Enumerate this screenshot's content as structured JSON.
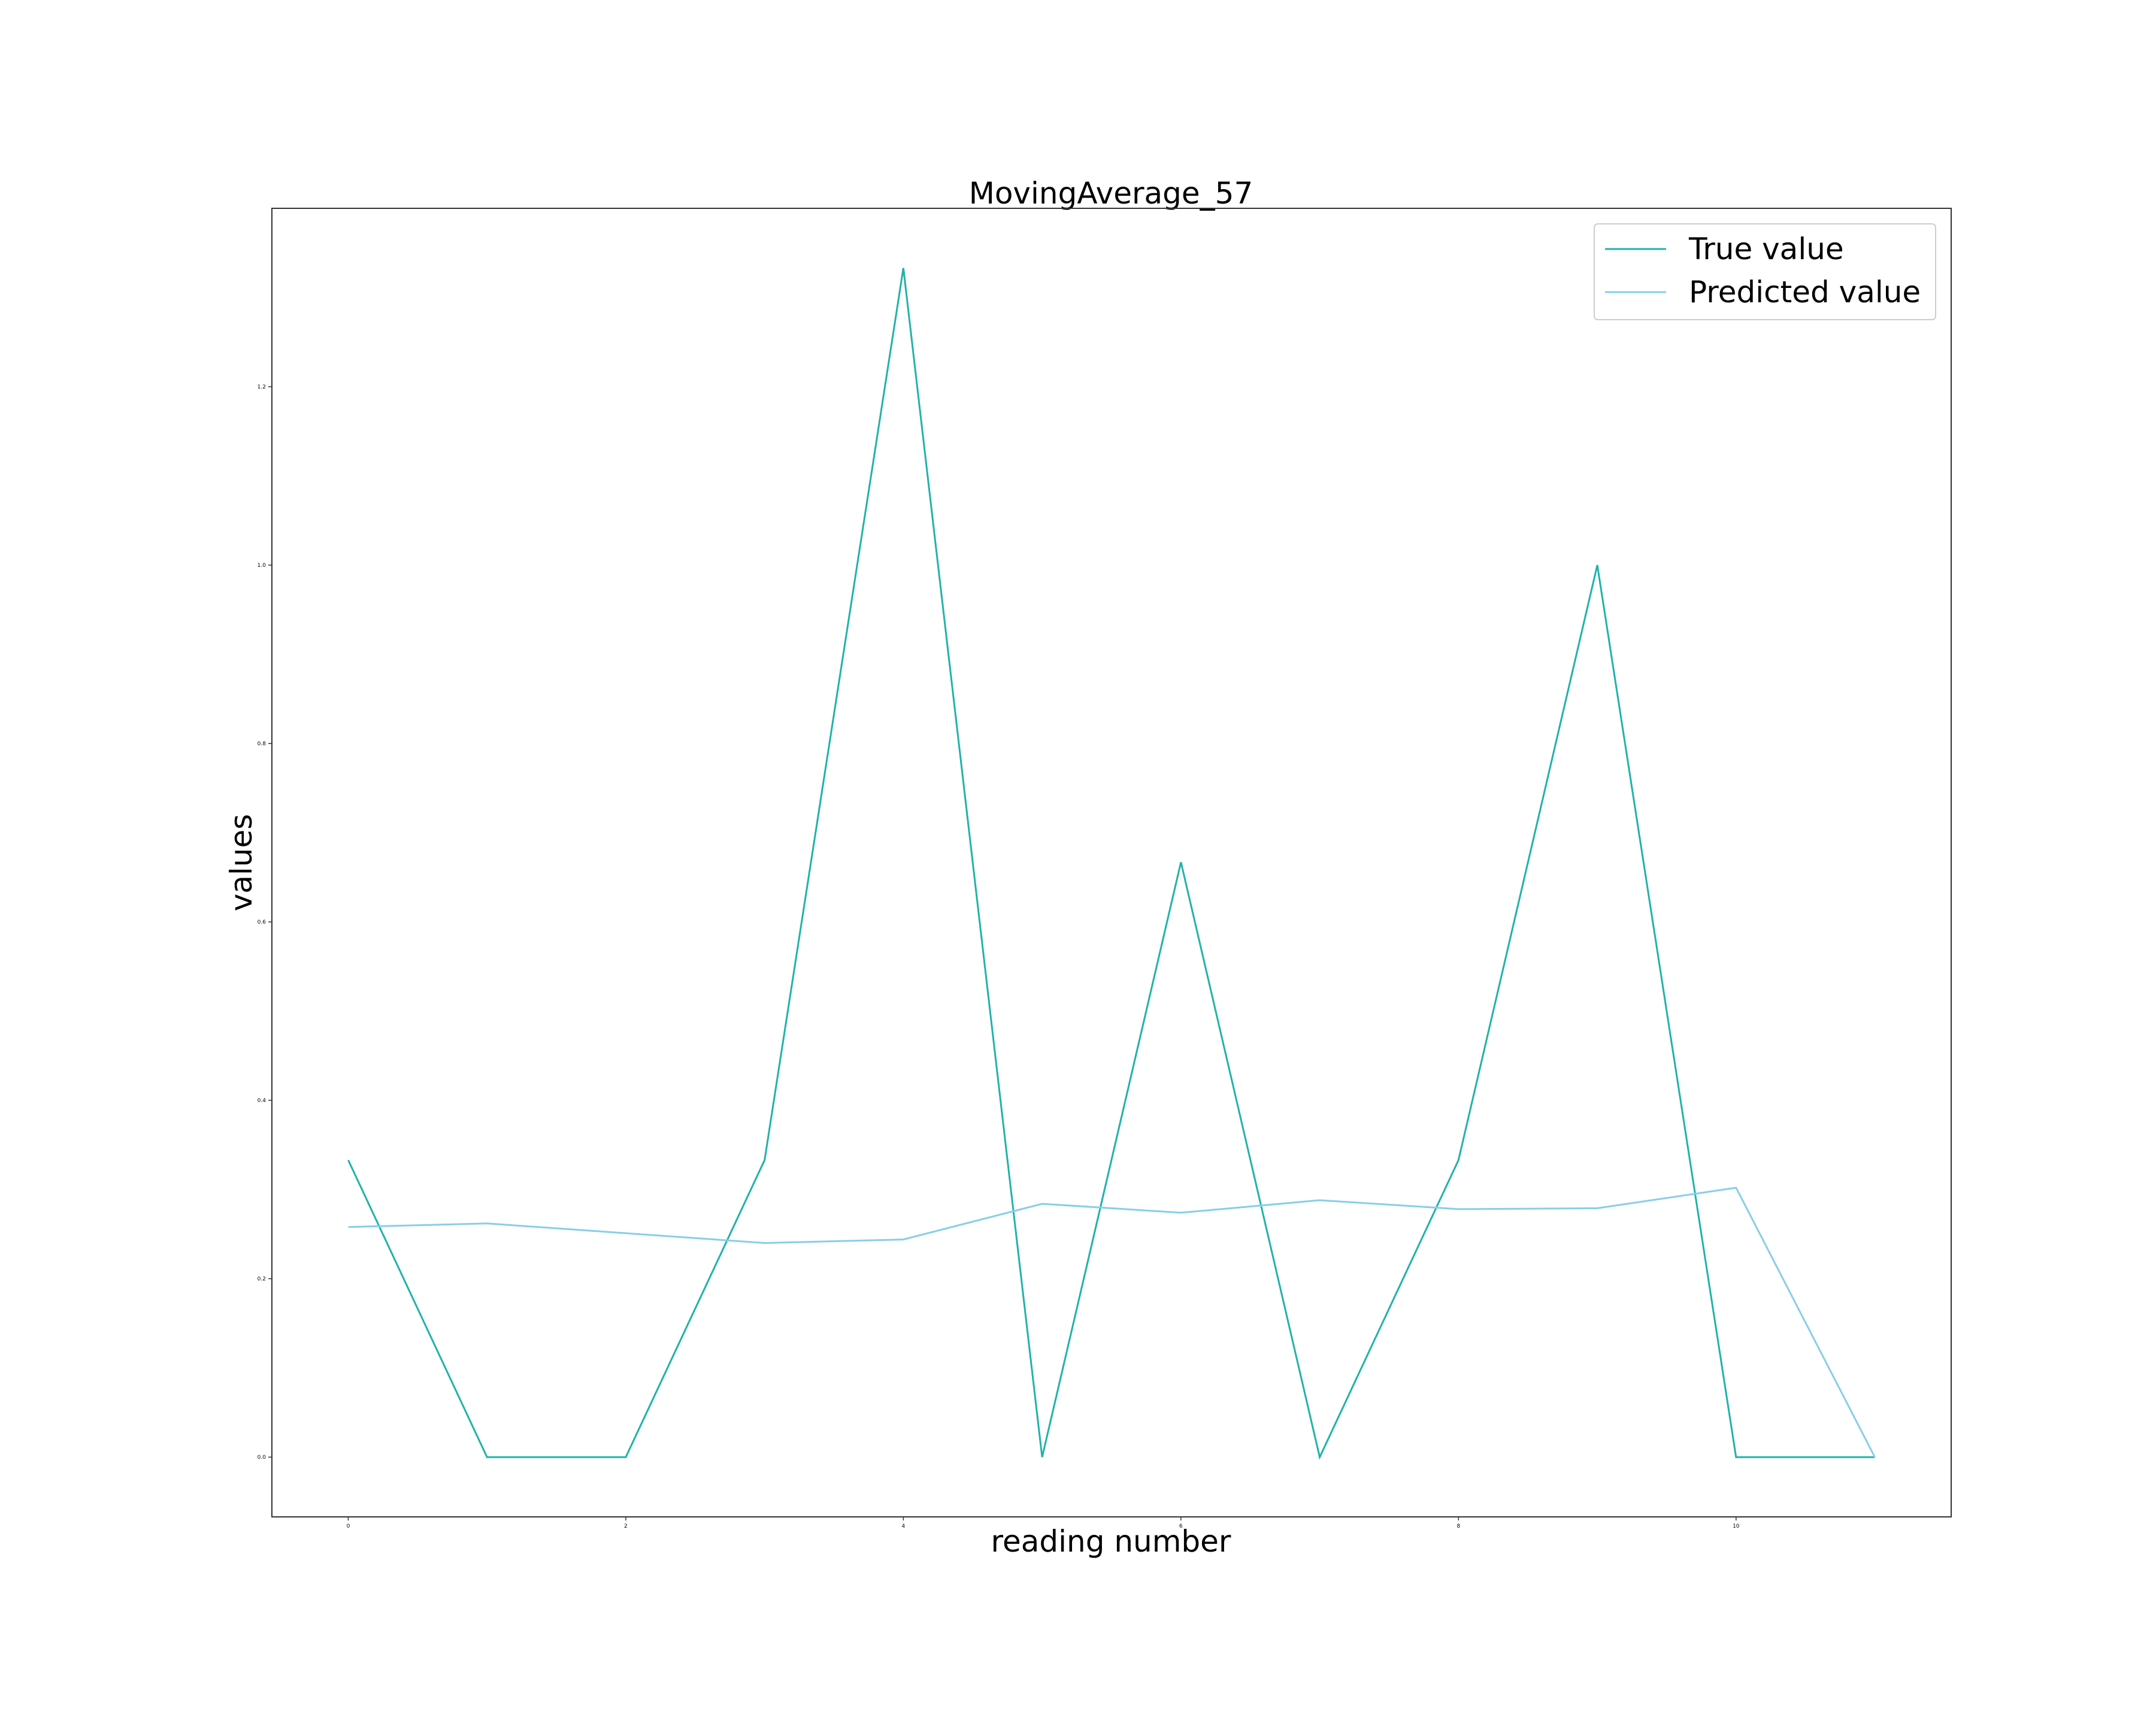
{
  "chart_data": {
    "type": "line",
    "title": "MovingAverage_57",
    "xlabel": "reading number",
    "ylabel": "values",
    "x": [
      0,
      1,
      2,
      3,
      4,
      5,
      6,
      7,
      8,
      9,
      10,
      11
    ],
    "series": [
      {
        "name": "True value",
        "color": "#20b2aa",
        "values": [
          0.333,
          0.0,
          0.0,
          0.333,
          1.333,
          0.0,
          0.667,
          0.0,
          0.333,
          1.0,
          0.0,
          0.0
        ]
      },
      {
        "name": "Predicted value",
        "color": "#87ceeb",
        "values": [
          0.258,
          0.262,
          0.251,
          0.24,
          0.244,
          0.284,
          0.274,
          0.288,
          0.278,
          0.279,
          0.302,
          0.0
        ]
      }
    ],
    "xlim": [
      -0.55,
      11.55
    ],
    "ylim": [
      -0.067,
      1.4
    ],
    "xticks": [
      0,
      2,
      4,
      6,
      8,
      10
    ],
    "yticks": [
      0.0,
      0.2,
      0.4,
      0.6,
      0.8,
      1.0,
      1.2
    ],
    "ytick_labels": [
      "0.0",
      "0.2",
      "0.4",
      "0.6",
      "0.8",
      "1.0",
      "1.2"
    ],
    "grid": false,
    "legend_position": "top-right"
  }
}
